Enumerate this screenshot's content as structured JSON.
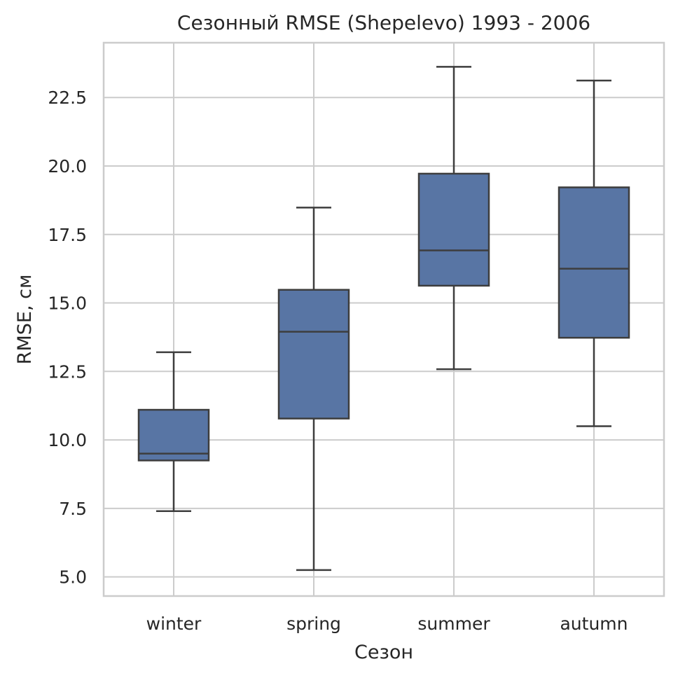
{
  "chart_data": {
    "type": "box",
    "title": "Сезонный RMSE (Shepelevo) 1993 - 2006",
    "xlabel": "Сезон",
    "ylabel": "RMSE, см",
    "ylim": [
      4.3,
      24.5
    ],
    "y_ticks": [
      5.0,
      7.5,
      10.0,
      12.5,
      15.0,
      17.5,
      20.0,
      22.5
    ],
    "y_tick_labels": [
      "5.0",
      "7.5",
      "10.0",
      "12.5",
      "15.0",
      "17.5",
      "20.0",
      "22.5"
    ],
    "grid": true,
    "box_color": "#5875a4",
    "line_color": "#3d3d3d",
    "categories": [
      "winter",
      "spring",
      "summer",
      "autumn"
    ],
    "boxes": [
      {
        "category": "winter",
        "whisker_low": 7.4,
        "q1": 9.25,
        "median": 9.5,
        "q3": 11.1,
        "whisker_high": 13.2
      },
      {
        "category": "spring",
        "whisker_low": 5.25,
        "q1": 10.78,
        "median": 13.95,
        "q3": 15.48,
        "whisker_high": 18.48
      },
      {
        "category": "summer",
        "whisker_low": 12.58,
        "q1": 15.63,
        "median": 16.92,
        "q3": 19.72,
        "whisker_high": 23.62
      },
      {
        "category": "autumn",
        "whisker_low": 10.5,
        "q1": 13.73,
        "median": 16.25,
        "q3": 19.22,
        "whisker_high": 23.12
      }
    ]
  }
}
